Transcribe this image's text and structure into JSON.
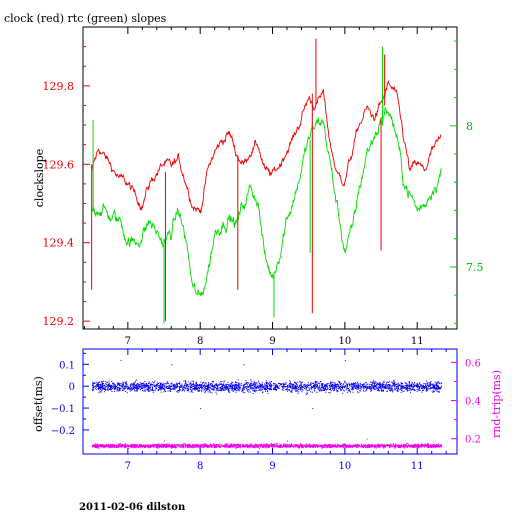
{
  "page": {
    "title": "clock (red) rtc (green) slopes",
    "footer": "2011-02-06 dilston",
    "colors": {
      "clock": "#ee0000",
      "rtc": "#00dd00",
      "offset": "#0000ee",
      "roundtrip": "#ee00ee",
      "axis_top": "#000000",
      "axis_bottom": "#0000ee"
    }
  },
  "chart_data": [
    {
      "type": "line",
      "title": "clock (red) rtc (green) slopes",
      "ylabel": "clockslope",
      "xlim": [
        6.38,
        11.55
      ],
      "ylim": [
        129.18,
        129.95
      ],
      "y2lim": [
        7.28,
        8.35
      ],
      "x_ticks": [
        "7",
        "8",
        "9",
        "10",
        "11"
      ],
      "y_ticks": [
        "129.2",
        "129.4",
        "129.6",
        "129.8"
      ],
      "y2_ticks": [
        "7.5",
        "8"
      ],
      "grid": false,
      "series": [
        {
          "name": "clock",
          "color": "#ee0000",
          "axis": "left",
          "x": [
            6.5,
            6.6,
            6.75,
            6.9,
            7.0,
            7.1,
            7.2,
            7.3,
            7.4,
            7.5,
            7.6,
            7.7,
            7.8,
            7.9,
            8.0,
            8.1,
            8.2,
            8.3,
            8.4,
            8.5,
            8.6,
            8.7,
            8.8,
            8.9,
            9.0,
            9.1,
            9.2,
            9.3,
            9.4,
            9.5,
            9.6,
            9.7,
            9.8,
            9.9,
            10.0,
            10.1,
            10.2,
            10.3,
            10.4,
            10.5,
            10.6,
            10.7,
            10.8,
            10.9,
            11.0,
            11.1,
            11.2,
            11.33
          ],
          "values": [
            129.58,
            129.64,
            129.6,
            129.56,
            129.55,
            129.52,
            129.5,
            129.55,
            129.58,
            129.6,
            129.59,
            129.61,
            129.56,
            129.5,
            129.48,
            129.58,
            129.63,
            129.66,
            129.68,
            129.63,
            129.6,
            129.64,
            129.65,
            129.58,
            129.57,
            129.6,
            129.64,
            129.67,
            129.72,
            129.77,
            129.75,
            129.78,
            129.65,
            129.57,
            129.56,
            129.63,
            129.7,
            129.74,
            129.72,
            129.75,
            129.8,
            129.78,
            129.68,
            129.58,
            129.6,
            129.58,
            129.63,
            129.66
          ]
        },
        {
          "name": "rtc",
          "color": "#00dd00",
          "axis": "right",
          "x": [
            6.5,
            6.6,
            6.75,
            6.9,
            7.0,
            7.1,
            7.2,
            7.3,
            7.4,
            7.5,
            7.6,
            7.7,
            7.8,
            7.9,
            8.0,
            8.1,
            8.2,
            8.3,
            8.4,
            8.5,
            8.6,
            8.7,
            8.8,
            8.9,
            9.0,
            9.1,
            9.2,
            9.3,
            9.4,
            9.5,
            9.6,
            9.7,
            9.8,
            9.9,
            10.0,
            10.1,
            10.2,
            10.3,
            10.4,
            10.5,
            10.6,
            10.7,
            10.8,
            10.9,
            11.0,
            11.1,
            11.2,
            11.33
          ],
          "values": [
            7.7,
            7.72,
            7.68,
            7.66,
            7.6,
            7.58,
            7.62,
            7.66,
            7.62,
            7.58,
            7.62,
            7.7,
            7.6,
            7.42,
            7.38,
            7.48,
            7.62,
            7.66,
            7.68,
            7.65,
            7.72,
            7.78,
            7.74,
            7.52,
            7.46,
            7.56,
            7.68,
            7.75,
            7.85,
            7.95,
            8.0,
            8.02,
            7.86,
            7.7,
            7.56,
            7.62,
            7.78,
            7.9,
            7.96,
            8.02,
            8.06,
            7.98,
            7.82,
            7.76,
            7.7,
            7.72,
            7.78,
            7.84
          ]
        }
      ]
    },
    {
      "type": "scatter",
      "ylabel": "offset(ms)",
      "y2label": "rnd-trip(ms)",
      "xlim": [
        6.38,
        11.55
      ],
      "ylim": [
        -0.31,
        0.17
      ],
      "y2lim": [
        0.12,
        0.67
      ],
      "x_ticks": [
        "7",
        "8",
        "9",
        "10",
        "11"
      ],
      "y_ticks": [
        "0.1",
        "0",
        "−0.1",
        "−0.2"
      ],
      "y2_ticks": [
        "0.6",
        "0.4",
        "0.2"
      ],
      "grid": false,
      "series": [
        {
          "name": "offset",
          "color": "#0000ee",
          "axis": "left",
          "x_range": [
            6.5,
            11.33
          ],
          "center": 0.0,
          "spread": 0.025,
          "outliers": [
            [
              6.9,
              0.12
            ],
            [
              7.6,
              0.1
            ],
            [
              8.6,
              0.1
            ],
            [
              9.55,
              -0.1
            ],
            [
              10.0,
              0.12
            ],
            [
              8.0,
              -0.1
            ]
          ]
        },
        {
          "name": "roundtrip",
          "color": "#ee00ee",
          "axis": "right",
          "x_range": [
            6.5,
            11.33
          ],
          "center": 0.165,
          "spread": 0.01,
          "outliers": [
            [
              7.5,
              0.19
            ],
            [
              9.2,
              0.19
            ],
            [
              10.3,
              0.2
            ]
          ]
        }
      ]
    }
  ]
}
